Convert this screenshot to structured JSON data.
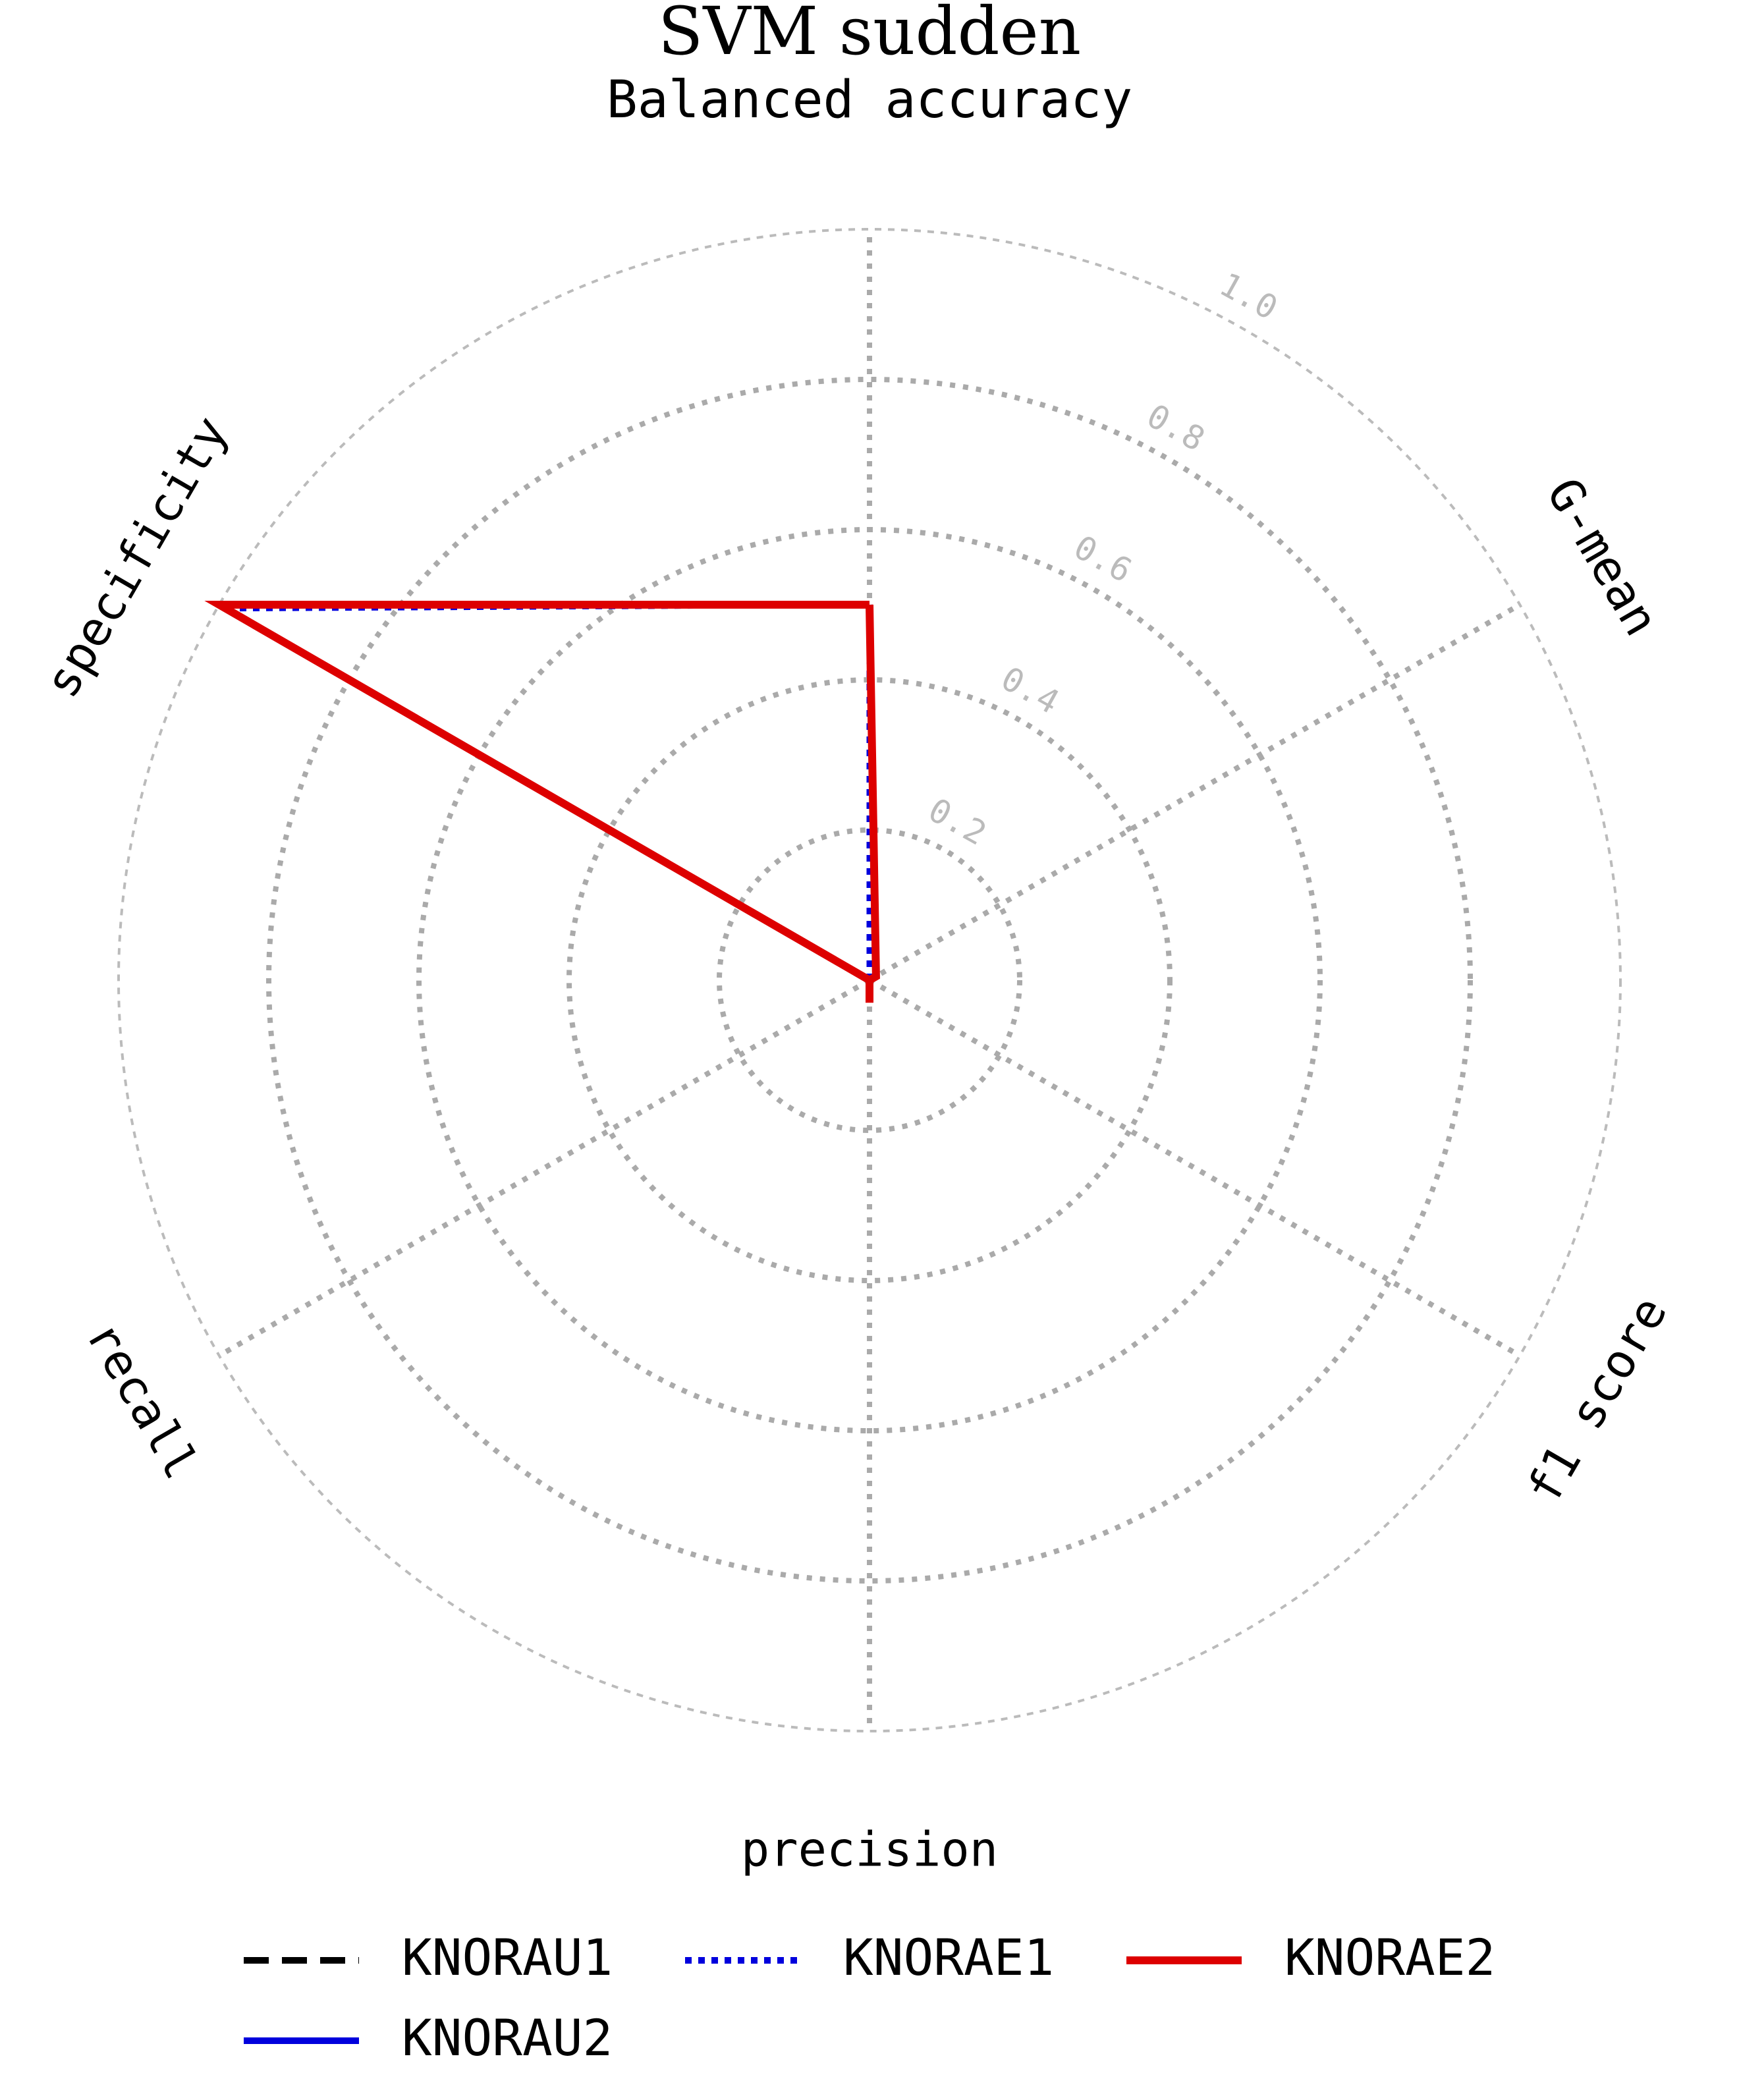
{
  "chart_data": {
    "type": "radar",
    "title": "SVM sudden",
    "subtitle": "Balanced accuracy",
    "axes": [
      "Balanced accuracy",
      "G-mean",
      "f1 score",
      "precision",
      "recall",
      "specificity"
    ],
    "rlim": [
      0,
      1.0
    ],
    "rticks": [
      "0.2",
      "0.4",
      "0.6",
      "0.8",
      "1.0"
    ],
    "grid": true,
    "legend_position": "bottom",
    "series": [
      {
        "name": "KNORAU1",
        "color": "#000000",
        "style": "dashed",
        "values": [
          0.5,
          0.01,
          0.0,
          0.0,
          0.0,
          1.0
        ]
      },
      {
        "name": "KNORAU2",
        "color": "#0000dd",
        "style": "solid",
        "values": [
          0.5,
          0.01,
          0.0,
          0.0,
          0.0,
          1.0
        ]
      },
      {
        "name": "KNORAE1",
        "color": "#0000dd",
        "style": "dotted",
        "values": [
          0.5,
          0.0,
          0.0,
          0.0,
          0.0,
          0.99
        ]
      },
      {
        "name": "KNORAE2",
        "color": "#dd0000",
        "style": "solid",
        "values": [
          0.5,
          0.01,
          0.0,
          0.03,
          0.0,
          1.0
        ]
      }
    ]
  }
}
